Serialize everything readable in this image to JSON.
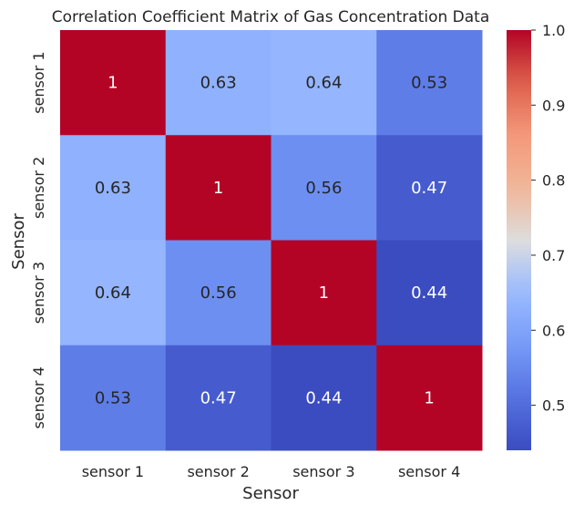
{
  "chart_data": {
    "type": "heatmap",
    "title": "Correlation Coefficient Matrix of Gas Concentration Data",
    "xlabel": "Sensor",
    "ylabel": "Sensor",
    "x_categories": [
      "sensor 1",
      "sensor 2",
      "sensor 3",
      "sensor 4"
    ],
    "y_categories": [
      "sensor 1",
      "sensor 2",
      "sensor 3",
      "sensor 4"
    ],
    "values": [
      [
        1,
        0.63,
        0.64,
        0.53
      ],
      [
        0.63,
        1,
        0.56,
        0.47
      ],
      [
        0.64,
        0.56,
        1,
        0.44
      ],
      [
        0.53,
        0.47,
        0.44,
        1
      ]
    ],
    "annotations": [
      [
        "1",
        "0.63",
        "0.64",
        "0.53"
      ],
      [
        "0.63",
        "1",
        "0.56",
        "0.47"
      ],
      [
        "0.64",
        "0.56",
        "1",
        "0.44"
      ],
      [
        "0.53",
        "0.47",
        "0.44",
        "1"
      ]
    ],
    "colormap": "coolwarm",
    "colorbar": {
      "vmin": 0.44,
      "vmax": 1.0,
      "ticks": [
        0.5,
        0.6,
        0.7,
        0.8,
        0.9,
        1.0
      ],
      "tick_labels": [
        "0.5",
        "0.6",
        "0.7",
        "0.8",
        "0.9",
        "1.0"
      ]
    },
    "grid": false
  }
}
